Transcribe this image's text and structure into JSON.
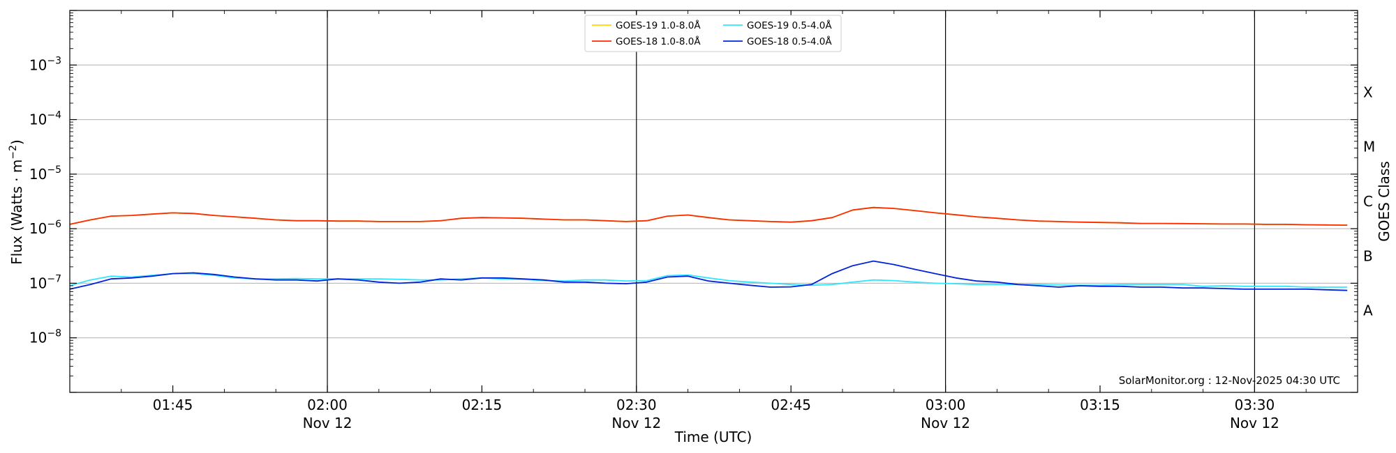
{
  "chart_data": {
    "type": "line",
    "y_scale": "log",
    "ylim": [
      1e-09,
      0.01
    ],
    "xlim": [
      "2025-11-12 01:35 UTC",
      "2025-11-12 03:40 UTC"
    ],
    "xlabel": "Time (UTC)",
    "ylabel": "Flux (Watts · m",
    "ylabel_sup": "−2",
    "ylabel_end": ")",
    "right_label": "GOES Class",
    "grid": "horizontal",
    "legend_position": "top-center",
    "credit": "SolarMonitor.org : 12-Nov-2025 04:30 UTC",
    "x_ticks": [
      {
        "time": "01:45",
        "date": "",
        "minute": 10
      },
      {
        "time": "02:00",
        "date": "Nov 12",
        "minute": 25
      },
      {
        "time": "02:15",
        "date": "",
        "minute": 40
      },
      {
        "time": "02:30",
        "date": "Nov 12",
        "minute": 55
      },
      {
        "time": "02:45",
        "date": "",
        "minute": 70
      },
      {
        "time": "03:00",
        "date": "Nov 12",
        "minute": 85
      },
      {
        "time": "03:15",
        "date": "",
        "minute": 100
      },
      {
        "time": "03:30",
        "date": "Nov 12",
        "minute": 115
      }
    ],
    "y_ticks": [
      {
        "label": "10",
        "exp": "−3",
        "value": -3
      },
      {
        "label": "10",
        "exp": "−4",
        "value": -4
      },
      {
        "label": "10",
        "exp": "−5",
        "value": -5
      },
      {
        "label": "10",
        "exp": "−6",
        "value": -6
      },
      {
        "label": "10",
        "exp": "−7",
        "value": -7
      },
      {
        "label": "10",
        "exp": "−8",
        "value": -8
      }
    ],
    "goes_classes": [
      {
        "label": "X",
        "log10": -3.5
      },
      {
        "label": "M",
        "log10": -4.5
      },
      {
        "label": "C",
        "log10": -5.5
      },
      {
        "label": "B",
        "log10": -6.5
      },
      {
        "label": "A",
        "log10": -7.5
      }
    ],
    "series": [
      {
        "name": "GOES-19 1.0-8.0Å",
        "color": "#FFD700",
        "minutes": [
          0,
          2,
          4,
          6,
          8,
          10,
          12,
          14,
          16,
          18,
          20,
          22,
          24,
          26,
          28,
          30,
          32,
          34,
          36,
          38,
          40,
          42,
          44,
          46,
          48,
          50,
          52,
          54,
          56,
          58,
          60,
          62,
          64,
          66,
          68,
          70,
          72,
          74,
          76,
          78,
          80,
          82,
          84,
          86,
          88,
          90,
          92,
          94,
          96,
          98,
          100,
          102,
          104,
          106,
          108,
          110,
          112,
          114,
          116,
          118,
          120,
          122,
          124
        ],
        "values": [
          1.2e-06,
          1.45e-06,
          1.7e-06,
          1.75e-06,
          1.85e-06,
          1.95e-06,
          1.9e-06,
          1.75e-06,
          1.65e-06,
          1.55e-06,
          1.45e-06,
          1.4e-06,
          1.4e-06,
          1.38e-06,
          1.38e-06,
          1.35e-06,
          1.35e-06,
          1.35e-06,
          1.4e-06,
          1.55e-06,
          1.6e-06,
          1.58e-06,
          1.55e-06,
          1.5e-06,
          1.45e-06,
          1.45e-06,
          1.4e-06,
          1.35e-06,
          1.4e-06,
          1.7e-06,
          1.78e-06,
          1.6e-06,
          1.45e-06,
          1.4e-06,
          1.35e-06,
          1.32e-06,
          1.4e-06,
          1.6e-06,
          2.2e-06,
          2.45e-06,
          2.35e-06,
          2.15e-06,
          1.95e-06,
          1.8e-06,
          1.65e-06,
          1.55e-06,
          1.45e-06,
          1.38e-06,
          1.35e-06,
          1.32e-06,
          1.3e-06,
          1.28e-06,
          1.25e-06,
          1.25e-06,
          1.24e-06,
          1.23e-06,
          1.22e-06,
          1.22e-06,
          1.2e-06,
          1.2e-06,
          1.18e-06,
          1.17e-06,
          1.16e-06
        ]
      },
      {
        "name": "GOES-18 1.0-8.0Å",
        "color": "#FF2A00",
        "minutes": [
          0,
          2,
          4,
          6,
          8,
          10,
          12,
          14,
          16,
          18,
          20,
          22,
          24,
          26,
          28,
          30,
          32,
          34,
          36,
          38,
          40,
          42,
          44,
          46,
          48,
          50,
          52,
          54,
          56,
          58,
          60,
          62,
          64,
          66,
          68,
          70,
          72,
          74,
          76,
          78,
          80,
          82,
          84,
          86,
          88,
          90,
          92,
          94,
          96,
          98,
          100,
          102,
          104,
          106,
          108,
          110,
          112,
          114,
          116,
          118,
          120,
          122,
          124
        ],
        "values": [
          1.2e-06,
          1.45e-06,
          1.7e-06,
          1.75e-06,
          1.85e-06,
          1.95e-06,
          1.9e-06,
          1.75e-06,
          1.65e-06,
          1.55e-06,
          1.45e-06,
          1.4e-06,
          1.4e-06,
          1.38e-06,
          1.38e-06,
          1.35e-06,
          1.35e-06,
          1.35e-06,
          1.4e-06,
          1.55e-06,
          1.6e-06,
          1.58e-06,
          1.55e-06,
          1.5e-06,
          1.45e-06,
          1.45e-06,
          1.4e-06,
          1.35e-06,
          1.4e-06,
          1.7e-06,
          1.78e-06,
          1.6e-06,
          1.45e-06,
          1.4e-06,
          1.35e-06,
          1.32e-06,
          1.4e-06,
          1.6e-06,
          2.2e-06,
          2.45e-06,
          2.35e-06,
          2.15e-06,
          1.95e-06,
          1.8e-06,
          1.65e-06,
          1.55e-06,
          1.45e-06,
          1.38e-06,
          1.35e-06,
          1.32e-06,
          1.3e-06,
          1.28e-06,
          1.25e-06,
          1.25e-06,
          1.24e-06,
          1.23e-06,
          1.22e-06,
          1.22e-06,
          1.2e-06,
          1.2e-06,
          1.18e-06,
          1.17e-06,
          1.16e-06
        ]
      },
      {
        "name": "GOES-19 0.5-4.0Å",
        "color": "#33E6FF",
        "minutes": [
          0,
          2,
          4,
          6,
          8,
          10,
          12,
          14,
          16,
          18,
          20,
          22,
          24,
          26,
          28,
          30,
          32,
          34,
          36,
          38,
          40,
          42,
          44,
          46,
          48,
          50,
          52,
          54,
          56,
          58,
          60,
          62,
          64,
          66,
          68,
          70,
          72,
          74,
          76,
          78,
          80,
          82,
          84,
          86,
          88,
          90,
          92,
          94,
          96,
          98,
          100,
          102,
          104,
          106,
          108,
          110,
          112,
          114,
          116,
          118,
          120,
          122,
          124
        ],
        "values": [
          9e-08,
          1.15e-07,
          1.35e-07,
          1.3e-07,
          1.4e-07,
          1.5e-07,
          1.5e-07,
          1.4e-07,
          1.25e-07,
          1.2e-07,
          1.2e-07,
          1.22e-07,
          1.2e-07,
          1.2e-07,
          1.2e-07,
          1.2e-07,
          1.18e-07,
          1.15e-07,
          1.15e-07,
          1.2e-07,
          1.25e-07,
          1.2e-07,
          1.18e-07,
          1.12e-07,
          1.1e-07,
          1.15e-07,
          1.15e-07,
          1.1e-07,
          1.12e-07,
          1.38e-07,
          1.42e-07,
          1.25e-07,
          1.12e-07,
          1.05e-07,
          1e-07,
          9.5e-08,
          9.2e-08,
          9.5e-08,
          1.05e-07,
          1.15e-07,
          1.12e-07,
          1.05e-07,
          1e-07,
          9.8e-08,
          9.5e-08,
          9.5e-08,
          9.5e-08,
          9.5e-08,
          9.3e-08,
          9.2e-08,
          9.2e-08,
          9.5e-08,
          9.5e-08,
          9.5e-08,
          9.5e-08,
          8.8e-08,
          9e-08,
          8.8e-08,
          8.8e-08,
          8.8e-08,
          8.5e-08,
          8.5e-08,
          8.5e-08
        ]
      },
      {
        "name": "GOES-18 0.5-4.0Å",
        "color": "#0022DD",
        "minutes": [
          0,
          2,
          4,
          6,
          8,
          10,
          12,
          14,
          16,
          18,
          20,
          22,
          24,
          26,
          28,
          30,
          32,
          34,
          36,
          38,
          40,
          42,
          44,
          46,
          48,
          50,
          52,
          54,
          56,
          58,
          60,
          62,
          64,
          66,
          68,
          70,
          72,
          74,
          76,
          78,
          80,
          82,
          84,
          86,
          88,
          90,
          92,
          94,
          96,
          98,
          100,
          102,
          104,
          106,
          108,
          110,
          112,
          114,
          116,
          118,
          120,
          122,
          124
        ],
        "values": [
          7.8e-08,
          9.5e-08,
          1.2e-07,
          1.25e-07,
          1.35e-07,
          1.5e-07,
          1.55e-07,
          1.45e-07,
          1.3e-07,
          1.2e-07,
          1.15e-07,
          1.15e-07,
          1.1e-07,
          1.2e-07,
          1.15e-07,
          1.05e-07,
          1e-07,
          1.05e-07,
          1.2e-07,
          1.15e-07,
          1.25e-07,
          1.25e-07,
          1.2e-07,
          1.15e-07,
          1.05e-07,
          1.05e-07,
          1e-07,
          9.8e-08,
          1.05e-07,
          1.3e-07,
          1.35e-07,
          1.1e-07,
          1e-07,
          9.2e-08,
          8.5e-08,
          8.6e-08,
          9.5e-08,
          1.5e-07,
          2.1e-07,
          2.55e-07,
          2.2e-07,
          1.8e-07,
          1.5e-07,
          1.25e-07,
          1.1e-07,
          1.05e-07,
          9.5e-08,
          9e-08,
          8.5e-08,
          9e-08,
          8.8e-08,
          8.8e-08,
          8.5e-08,
          8.5e-08,
          8.2e-08,
          8.2e-08,
          8e-08,
          7.8e-08,
          7.8e-08,
          7.8e-08,
          7.8e-08,
          7.6e-08,
          7.4e-08
        ]
      }
    ]
  }
}
